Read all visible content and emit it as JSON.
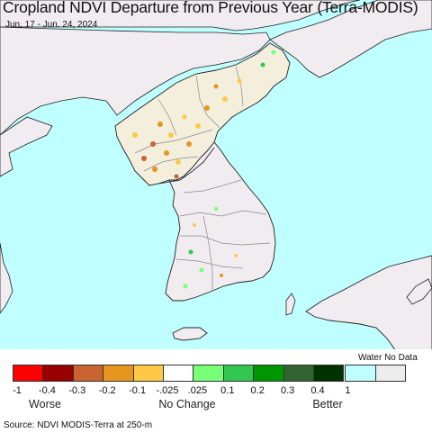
{
  "title": "Cropland NDVI Departure from Previous Year (Terra-MODIS)",
  "subtitle": "Jun. 17 - Jun. 24, 2024",
  "colors": {
    "water": "#bfffff",
    "land_no_data": "#f0ecf0",
    "borders": "#8a8a8a",
    "coast": "#222222"
  },
  "legend": {
    "water_no_data_label": "Water No Data",
    "swatches": [
      {
        "color": "#ff0000"
      },
      {
        "color": "#990000"
      },
      {
        "color": "#c86432"
      },
      {
        "color": "#e6961e"
      },
      {
        "color": "#ffc846"
      },
      {
        "color": "#ffffff"
      },
      {
        "color": "#78ff78"
      },
      {
        "color": "#32c850"
      },
      {
        "color": "#009600"
      },
      {
        "color": "#326432"
      },
      {
        "color": "#003200"
      },
      {
        "color": "#bfffff"
      },
      {
        "color": "#ececec"
      }
    ],
    "ticks": [
      "-1",
      "-0.4",
      "-0.3",
      "-0.2",
      "-0.1",
      "-.025",
      ".025",
      "0.1",
      "0.2",
      "0.3",
      "0.4",
      "1"
    ],
    "categories": {
      "worse": "Worse",
      "no_change": "No Change",
      "better": "Better"
    }
  },
  "source": "Source: NDVI MODIS-Terra at 250-m"
}
